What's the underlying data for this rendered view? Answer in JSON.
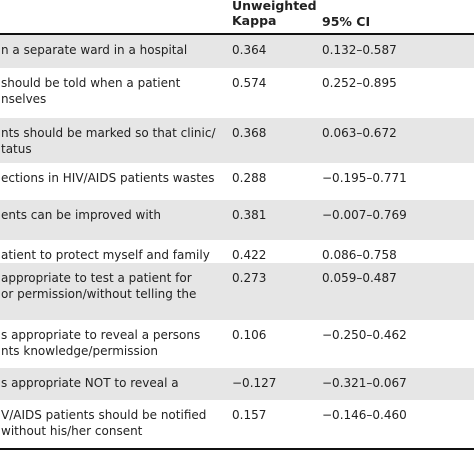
{
  "table": {
    "header": [
      "Unweighted Kappa",
      "95% CI"
    ],
    "rows": [
      {
        "item": [
          "n a separate ward in a hospital"
        ],
        "kappa": "0.364",
        "ci": "0.132–0.587"
      },
      {
        "item": [
          "should be told when a patient",
          "nselves"
        ],
        "kappa": "0.574",
        "ci": "0.252–0.895"
      },
      {
        "item": [
          "nts should be marked so that clinic/",
          "tatus"
        ],
        "kappa": "0.368",
        "ci": "0.063–0.672"
      },
      {
        "item": [
          "ections in HIV/AIDS patients wastes"
        ],
        "kappa": "0.288",
        "ci": "−0.195–0.771"
      },
      {
        "item": [
          "ents can be improved with"
        ],
        "kappa": "0.381",
        "ci": "−0.007–0.769"
      },
      {
        "item": [
          "atient to protect myself and family"
        ],
        "kappa": "0.422",
        "ci": "0.086–0.758"
      },
      {
        "item": [
          "appropriate to test a patient for",
          "or permission/without telling the"
        ],
        "kappa": "0.273",
        "ci": "0.059–0.487"
      },
      {
        "item": [
          "s appropriate to reveal a persons",
          "nts knowledge/permission"
        ],
        "kappa": "0.106",
        "ci": "−0.250–0.462"
      },
      {
        "item": [
          "s appropriate NOT to reveal a"
        ],
        "kappa": "−0.127",
        "ci": "−0.321–0.067"
      },
      {
        "item": [
          "V/AIDS patients should be notified",
          "without his/her consent"
        ],
        "kappa": "0.157",
        "ci": "−0.146–0.460"
      }
    ]
  }
}
